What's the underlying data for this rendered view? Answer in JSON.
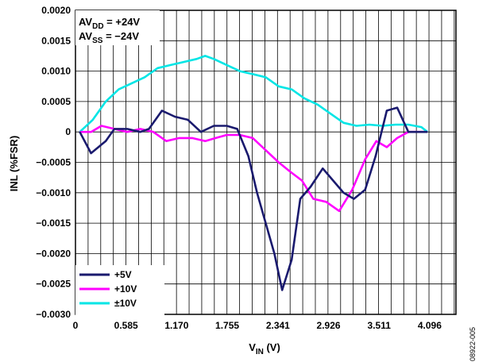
{
  "chart_data": {
    "type": "line",
    "xlabel": {
      "main": "V",
      "sub": "IN",
      "unit": " (V)"
    },
    "ylabel": "INL (%FSR)",
    "xlim": [
      0,
      4.4
    ],
    "ylim": [
      -0.003,
      0.002
    ],
    "x_ticks": [
      {
        "value": 0,
        "label": "0"
      },
      {
        "value": 0.585,
        "label": "0.585"
      },
      {
        "value": 1.17,
        "label": "1.170"
      },
      {
        "value": 1.755,
        "label": "1.755"
      },
      {
        "value": 2.341,
        "label": "2.341"
      },
      {
        "value": 2.926,
        "label": "2.926"
      },
      {
        "value": 3.511,
        "label": "3.511"
      },
      {
        "value": 4.096,
        "label": "4.096"
      }
    ],
    "y_ticks": [
      {
        "value": 0.002,
        "label": "0.0020"
      },
      {
        "value": 0.0015,
        "label": "0.0015"
      },
      {
        "value": 0.001,
        "label": "0.0010"
      },
      {
        "value": 0.0005,
        "label": "0.0005"
      },
      {
        "value": 0,
        "label": "0"
      },
      {
        "value": -0.0005,
        "label": "−0.0005"
      },
      {
        "value": -0.001,
        "label": "−0.0010"
      },
      {
        "value": -0.0015,
        "label": "−0.0015"
      },
      {
        "value": -0.002,
        "label": "−0.0020"
      },
      {
        "value": -0.0025,
        "label": "−0.0025"
      },
      {
        "value": -0.003,
        "label": "−0.0030"
      }
    ],
    "grid": true,
    "grid_minor_x_step": 0.146,
    "legend_position": "bottom-left",
    "annotation": [
      {
        "main": "AV",
        "sub": "DD",
        "rest": " = +24V"
      },
      {
        "main": "AV",
        "sub": "SS",
        "rest": " = −24V"
      }
    ],
    "series": [
      {
        "name": "+5V",
        "color": "#1a1a6e",
        "x": [
          0.05,
          0.18,
          0.35,
          0.45,
          0.6,
          0.75,
          0.85,
          1.0,
          1.15,
          1.3,
          1.45,
          1.6,
          1.75,
          1.87,
          2.0,
          2.1,
          2.2,
          2.3,
          2.39,
          2.5,
          2.6,
          2.72,
          2.86,
          2.98,
          3.1,
          3.22,
          3.35,
          3.47,
          3.6,
          3.72,
          3.85,
          3.98,
          4.07
        ],
        "y": [
          0.0,
          -0.00035,
          -0.00015,
          5e-05,
          5e-05,
          0.0,
          5e-05,
          0.00035,
          0.00025,
          0.0002,
          0.0,
          0.0001,
          0.0001,
          5e-05,
          -0.0004,
          -0.001,
          -0.0015,
          -0.002,
          -0.0026,
          -0.0021,
          -0.0011,
          -0.0009,
          -0.0006,
          -0.0008,
          -0.001,
          -0.0011,
          -0.00095,
          -0.0004,
          0.00035,
          0.0004,
          0.0,
          0.0,
          0.0
        ],
        "y_note": "values estimated from gridlines"
      },
      {
        "name": "+10V",
        "color": "#ff00ff",
        "x": [
          0.05,
          0.18,
          0.3,
          0.45,
          0.6,
          0.75,
          0.9,
          1.05,
          1.2,
          1.35,
          1.5,
          1.62,
          1.75,
          1.9,
          2.05,
          2.2,
          2.35,
          2.48,
          2.62,
          2.75,
          2.9,
          3.05,
          3.2,
          3.35,
          3.48,
          3.6,
          3.72,
          3.85,
          3.98,
          4.07
        ],
        "y": [
          0.0,
          0.0,
          0.0001,
          5e-05,
          0.0,
          5e-05,
          0.0,
          -0.00015,
          -0.0001,
          -0.0001,
          -0.00015,
          -0.0001,
          -5e-05,
          -5e-05,
          -0.0001,
          -0.0003,
          -0.0005,
          -0.00065,
          -0.0008,
          -0.0011,
          -0.00115,
          -0.0013,
          -0.00095,
          -0.00045,
          -0.00015,
          -0.00025,
          -0.0001,
          0.0,
          0.0,
          0.0
        ],
        "y_note": "values estimated from gridlines"
      },
      {
        "name": "±10V",
        "color": "#00e5e5",
        "x": [
          0.05,
          0.2,
          0.35,
          0.5,
          0.65,
          0.8,
          0.95,
          1.1,
          1.25,
          1.4,
          1.5,
          1.6,
          1.75,
          1.9,
          2.05,
          2.2,
          2.35,
          2.5,
          2.65,
          2.8,
          2.95,
          3.1,
          3.25,
          3.4,
          3.55,
          3.7,
          3.85,
          4.0,
          4.07
        ],
        "y": [
          0.0,
          0.0002,
          0.0005,
          0.0007,
          0.0008,
          0.0009,
          0.00105,
          0.0011,
          0.00115,
          0.0012,
          0.00125,
          0.0012,
          0.0011,
          0.001,
          0.00095,
          0.0009,
          0.00075,
          0.0007,
          0.00055,
          0.00045,
          0.0003,
          0.00015,
          0.0001,
          0.00012,
          0.0001,
          0.00012,
          0.00012,
          8e-05,
          0.0
        ],
        "y_note": "values estimated from gridlines"
      }
    ],
    "figure_id": "08922-005"
  }
}
